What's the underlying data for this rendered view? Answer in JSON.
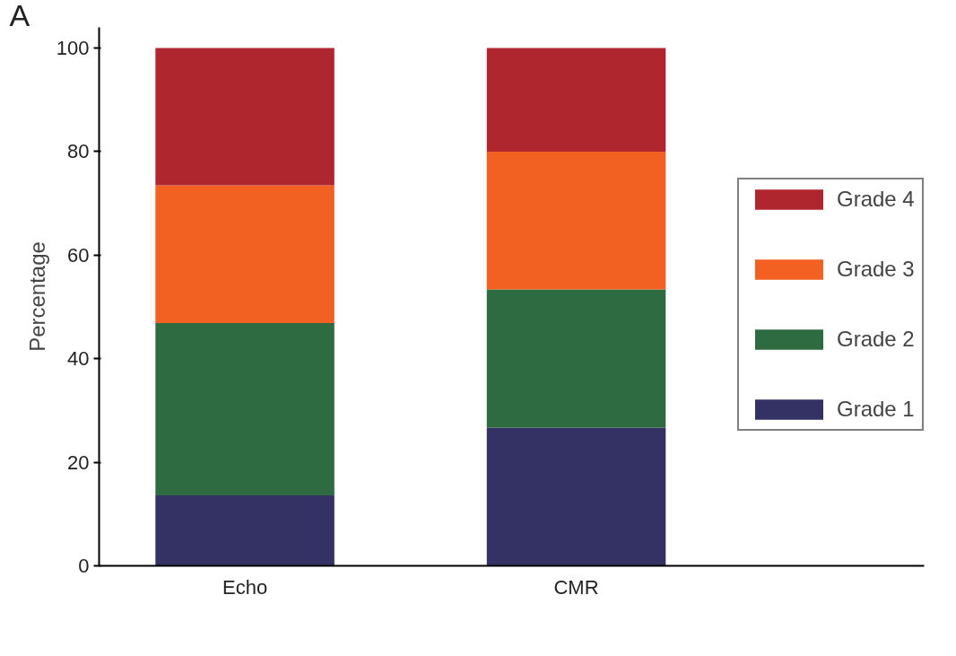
{
  "chart_data": {
    "type": "bar",
    "stacked": true,
    "ylabel": "Percentage",
    "categories": [
      "Echo",
      "CMR"
    ],
    "series": [
      {
        "name": "Grade 1",
        "color": "#343264",
        "values": [
          13.6,
          26.7
        ]
      },
      {
        "name": "Grade 2",
        "color": "#2e6b40",
        "values": [
          33.3,
          26.7
        ]
      },
      {
        "name": "Grade 3",
        "color": "#f26122",
        "values": [
          26.6,
          26.6
        ]
      },
      {
        "name": "Grade 4",
        "color": "#b0262e",
        "values": [
          26.5,
          20.0
        ]
      }
    ],
    "ylim": [
      0,
      104
    ],
    "yticks": [
      0,
      20,
      40,
      60,
      80,
      100
    ],
    "grid": false,
    "legend": "right",
    "annotations": [
      "A"
    ]
  }
}
